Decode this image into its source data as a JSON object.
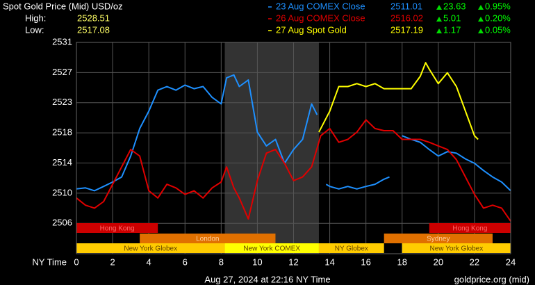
{
  "chart_data": {
    "type": "line",
    "title": "Spot Gold Price (Mid) USD/oz",
    "high_label": "High:",
    "high": 2528.51,
    "low_label": "Low:",
    "low": 2517.08,
    "x_label": "NY Time",
    "footer": "Aug 27, 2024 at 22:16 NY Time",
    "source": "goldprice.org (mid)",
    "xlim": [
      0,
      24
    ],
    "xticks": [
      0,
      2,
      4,
      6,
      8,
      10,
      12,
      14,
      16,
      18,
      20,
      22,
      24
    ],
    "ylim": [
      2501.8,
      2531
    ],
    "yticks": [
      {
        "value": 2506,
        "label": "2506"
      },
      {
        "value": 2510.17,
        "label": "2510"
      },
      {
        "value": 2514.33,
        "label": "2514"
      },
      {
        "value": 2518.5,
        "label": "2518"
      },
      {
        "value": 2522.67,
        "label": "2523"
      },
      {
        "value": 2526.83,
        "label": "2527"
      },
      {
        "value": 2531,
        "label": "2531"
      }
    ],
    "grid": true,
    "highlight": [
      8.2,
      13.4
    ],
    "sessions": [
      {
        "label": "Hong Kong",
        "start": 0,
        "end": 4.5,
        "row": 0,
        "color": "#cc0000",
        "text_color": "#ff6a6a"
      },
      {
        "label": "Hong Kong",
        "start": 19.5,
        "end": 24,
        "row": 0,
        "color": "#cc0000",
        "text_color": "#ff6a6a"
      },
      {
        "label": "London",
        "start": 3.5,
        "end": 11,
        "row": 1,
        "color": "#e07000",
        "text_color": "#ffd0a0"
      },
      {
        "label": "Sydney",
        "start": 17,
        "end": 23,
        "row": 1,
        "color": "#e07000",
        "text_color": "#ffd0a0"
      },
      {
        "label": "New York Globex",
        "start": 0,
        "end": 8.2,
        "row": 2,
        "color": "#ffcc00",
        "text_color": "#604000"
      },
      {
        "label": "New York COMEX",
        "start": 8.2,
        "end": 13.4,
        "row": 2,
        "color": "#ffff00",
        "text_color": "#604000"
      },
      {
        "label": "NY Globex",
        "start": 13.4,
        "end": 17,
        "row": 2,
        "color": "#ffcc00",
        "text_color": "#604000"
      },
      {
        "label": "New York Globex",
        "start": 18,
        "end": 24,
        "row": 2,
        "color": "#ffcc00",
        "text_color": "#604000"
      }
    ],
    "series": [
      {
        "name": "23 Aug COMEX Close",
        "color": "#1e90ff",
        "close": 2511.01,
        "change": 23.63,
        "change_pct": "0.95%",
        "x": [
          0,
          0.5,
          1,
          1.5,
          2,
          2.5,
          3,
          3.5,
          4,
          4.5,
          5,
          5.5,
          6,
          6.5,
          7,
          7.5,
          8,
          8.3,
          8.7,
          9,
          9.5,
          10,
          10.5,
          11,
          11.5,
          12,
          12.5,
          13,
          13.3,
          13.4,
          13.8,
          14,
          14.5,
          15,
          15.5,
          16,
          16.5,
          17,
          17.3,
          17.5,
          18,
          18.5,
          19,
          19.5,
          20,
          20.5,
          21,
          21.5,
          22,
          22.5,
          23,
          23.5,
          24
        ],
        "values": [
          2510.75,
          2510.9,
          2510.5,
          2511.1,
          2511.7,
          2512.4,
          2515.3,
          2519.1,
          2521.5,
          2524.4,
          2524.9,
          2524.4,
          2525.1,
          2524.6,
          2524.9,
          2523.4,
          2522.5,
          2526.1,
          2526.5,
          2524.9,
          2525.8,
          2518.6,
          2516.7,
          2517.6,
          2514.3,
          2516.2,
          2517.6,
          2522.5,
          2521.0,
          null,
          2511.4,
          2511.1,
          2510.75,
          2511.1,
          2510.75,
          2511.1,
          2511.4,
          2512.1,
          2512.4,
          null,
          2518.1,
          2517.6,
          2517.2,
          2516.2,
          2515.3,
          2515.9,
          2515.7,
          2514.9,
          2514.3,
          2513.3,
          2512.4,
          2511.7,
          2510.5
        ]
      },
      {
        "name": "26 Aug COMEX Close",
        "color": "#e00000",
        "close": 2516.02,
        "change": 5.01,
        "change_pct": "0.20%",
        "x": [
          0,
          0.5,
          1,
          1.5,
          2,
          2.5,
          3,
          3.5,
          4,
          4.5,
          5,
          5.5,
          6,
          6.5,
          7,
          7.5,
          8,
          8.3,
          8.7,
          9,
          9.5,
          10,
          10.5,
          11,
          11.5,
          12,
          12.5,
          13,
          13.5,
          14,
          14.5,
          15,
          15.5,
          16,
          16.5,
          17,
          17.5,
          18,
          18.5,
          19,
          19.5,
          20,
          20.5,
          21,
          21.5,
          22,
          22.5,
          23,
          23.5,
          24
        ],
        "values": [
          2509.5,
          2508.5,
          2508.1,
          2509.0,
          2511.4,
          2513.8,
          2516.2,
          2515.3,
          2510.5,
          2509.5,
          2511.4,
          2510.9,
          2510.0,
          2510.5,
          2509.5,
          2510.9,
          2511.7,
          2513.8,
          2510.9,
          2509.5,
          2506.6,
          2511.9,
          2515.7,
          2516.2,
          2514.3,
          2511.9,
          2512.4,
          2513.8,
          2518.1,
          2519.1,
          2517.2,
          2517.6,
          2518.6,
          2520.3,
          2519.1,
          2518.8,
          2518.8,
          2517.6,
          2517.6,
          2517.6,
          2517.2,
          2516.7,
          2516.2,
          2514.8,
          2512.4,
          2510.0,
          2508.1,
          2508.5,
          2508.1,
          2506.3
        ]
      },
      {
        "name": "27 Aug Spot Gold",
        "color": "#ffff00",
        "close": 2517.19,
        "change": 1.17,
        "change_pct": "0.05%",
        "x": [
          13.4,
          14,
          14.5,
          15,
          15.5,
          16,
          16.5,
          17,
          17.5,
          18,
          18.5,
          19,
          19.3,
          19.5,
          20,
          20.5,
          21,
          21.5,
          22,
          22.2
        ],
        "values": [
          2518.6,
          2521.5,
          2524.9,
          2524.9,
          2525.3,
          2524.9,
          2525.3,
          2524.6,
          2524.6,
          2524.6,
          2524.6,
          2526.3,
          2528.2,
          2527.3,
          2525.3,
          2526.8,
          2524.9,
          2521.5,
          2518.1,
          2517.6
        ]
      }
    ]
  }
}
